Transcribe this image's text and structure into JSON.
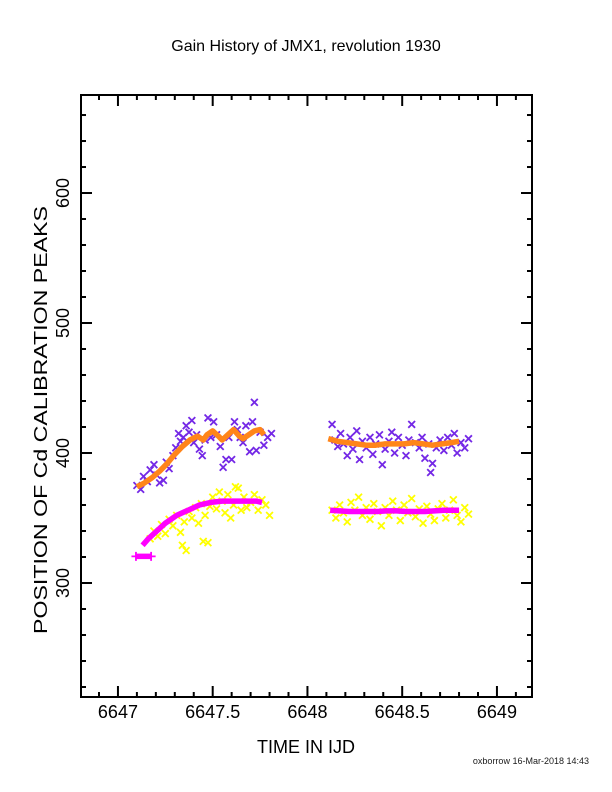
{
  "page": {
    "background": "#FFFFFF",
    "footer": "oxborrow 16-Mar-2018 14:43"
  },
  "chart_data": {
    "type": "scatter",
    "title": "Gain History of JMX1, revolution 1930",
    "xlabel": "TIME IN IJD",
    "ylabel": "POSITION OF Cd CALIBRATION PEAKS",
    "xlim": [
      6646.805,
      6649.185
    ],
    "ylim": [
      212.3,
      675.4
    ],
    "grid": false,
    "legend": null,
    "axis_color": "#000000",
    "x_minor_step": 0.1,
    "y_minor_step": 20,
    "x_major_ticks": [
      6647,
      6647.5,
      6648,
      6648.5,
      6649
    ],
    "x_tick_labels": [
      "6647",
      "6647.5",
      "6648",
      "6648.5",
      "6649"
    ],
    "y_major_ticks": [
      300,
      400,
      500,
      600
    ],
    "y_tick_labels": [
      "300",
      "400",
      "500",
      "600"
    ],
    "series": [
      {
        "name": "upper-peak-measurements",
        "type": "scatter",
        "marker": "x",
        "color": "#7428E6",
        "points": [
          [
            6647.1,
            375
          ],
          [
            6647.12,
            372
          ],
          [
            6647.135,
            382
          ],
          [
            6647.155,
            378
          ],
          [
            6647.17,
            387
          ],
          [
            6647.19,
            391
          ],
          [
            6647.205,
            383
          ],
          [
            6647.22,
            377
          ],
          [
            6647.24,
            379
          ],
          [
            6647.255,
            393
          ],
          [
            6647.27,
            388
          ],
          [
            6647.29,
            398
          ],
          [
            6647.305,
            404
          ],
          [
            6647.32,
            415
          ],
          [
            6647.33,
            409
          ],
          [
            6647.345,
            412
          ],
          [
            6647.36,
            421
          ],
          [
            6647.375,
            416
          ],
          [
            6647.39,
            425
          ],
          [
            6647.4,
            408
          ],
          [
            6647.415,
            414
          ],
          [
            6647.43,
            403
          ],
          [
            6647.445,
            398
          ],
          [
            6647.46,
            410
          ],
          [
            6647.475,
            427
          ],
          [
            6647.49,
            412
          ],
          [
            6647.505,
            424
          ],
          [
            6647.52,
            414
          ],
          [
            6647.54,
            405
          ],
          [
            6647.555,
            389
          ],
          [
            6647.57,
            395
          ],
          [
            6647.585,
            412
          ],
          [
            6647.6,
            395
          ],
          [
            6647.615,
            424
          ],
          [
            6647.63,
            418
          ],
          [
            6647.645,
            412
          ],
          [
            6647.66,
            408
          ],
          [
            6647.675,
            421
          ],
          [
            6647.695,
            401
          ],
          [
            6647.71,
            424
          ],
          [
            6647.72,
            439
          ],
          [
            6647.73,
            402
          ],
          [
            6647.75,
            416
          ],
          [
            6647.77,
            406
          ],
          [
            6647.79,
            412
          ],
          [
            6647.81,
            415
          ],
          [
            6648.13,
            422
          ],
          [
            6648.145,
            410
          ],
          [
            6648.16,
            405
          ],
          [
            6648.175,
            415
          ],
          [
            6648.19,
            407
          ],
          [
            6648.21,
            398
          ],
          [
            6648.225,
            412
          ],
          [
            6648.24,
            403
          ],
          [
            6648.26,
            417
          ],
          [
            6648.275,
            395
          ],
          [
            6648.29,
            409
          ],
          [
            6648.31,
            404
          ],
          [
            6648.33,
            412
          ],
          [
            6648.345,
            399
          ],
          [
            6648.36,
            407
          ],
          [
            6648.38,
            414
          ],
          [
            6648.395,
            391
          ],
          [
            6648.41,
            403
          ],
          [
            6648.43,
            409
          ],
          [
            6648.445,
            416
          ],
          [
            6648.46,
            400
          ],
          [
            6648.48,
            412
          ],
          [
            6648.5,
            406
          ],
          [
            6648.52,
            398
          ],
          [
            6648.535,
            410
          ],
          [
            6648.55,
            422
          ],
          [
            6648.57,
            408
          ],
          [
            6648.59,
            404
          ],
          [
            6648.605,
            412
          ],
          [
            6648.62,
            396
          ],
          [
            6648.64,
            407
          ],
          [
            6648.65,
            385
          ],
          [
            6648.66,
            392
          ],
          [
            6648.68,
            404
          ],
          [
            6648.7,
            410
          ],
          [
            6648.72,
            402
          ],
          [
            6648.74,
            412
          ],
          [
            6648.76,
            406
          ],
          [
            6648.775,
            415
          ],
          [
            6648.79,
            400
          ],
          [
            6648.81,
            408
          ],
          [
            6648.83,
            404
          ],
          [
            6648.85,
            411
          ]
        ]
      },
      {
        "name": "upper-peak-smoothed",
        "type": "line",
        "color": "#FF8519",
        "stroke_width": 5.5,
        "segments": [
          [
            [
              6647.1,
              374
            ],
            [
              6647.14,
              377
            ],
            [
              6647.18,
              381
            ],
            [
              6647.22,
              386
            ],
            [
              6647.26,
              392
            ],
            [
              6647.3,
              399
            ],
            [
              6647.34,
              405
            ],
            [
              6647.38,
              410
            ],
            [
              6647.42,
              413
            ],
            [
              6647.45,
              410
            ],
            [
              6647.47,
              414
            ],
            [
              6647.5,
              417
            ],
            [
              6647.53,
              413
            ],
            [
              6647.55,
              410
            ],
            [
              6647.58,
              414
            ],
            [
              6647.61,
              418
            ],
            [
              6647.64,
              413
            ],
            [
              6647.66,
              411
            ],
            [
              6647.69,
              414
            ],
            [
              6647.72,
              417
            ],
            [
              6647.75,
              418
            ],
            [
              6647.77,
              414
            ]
          ],
          [
            [
              6648.11,
              411
            ],
            [
              6648.16,
              409
            ],
            [
              6648.21,
              408
            ],
            [
              6648.26,
              407
            ],
            [
              6648.31,
              406
            ],
            [
              6648.36,
              406
            ],
            [
              6648.41,
              407
            ],
            [
              6648.46,
              407
            ],
            [
              6648.51,
              407
            ],
            [
              6648.56,
              408
            ],
            [
              6648.61,
              407
            ],
            [
              6648.66,
              406
            ],
            [
              6648.71,
              407
            ],
            [
              6648.76,
              408
            ],
            [
              6648.8,
              409
            ]
          ]
        ]
      },
      {
        "name": "lower-peak-measurements",
        "type": "scatter",
        "marker": "x",
        "color": "#FFFF00",
        "points": [
          [
            6647.17,
            334
          ],
          [
            6647.19,
            340
          ],
          [
            6647.21,
            336
          ],
          [
            6647.23,
            345
          ],
          [
            6647.25,
            338
          ],
          [
            6647.27,
            349
          ],
          [
            6647.29,
            344
          ],
          [
            6647.31,
            352
          ],
          [
            6647.33,
            339
          ],
          [
            6647.34,
            329
          ],
          [
            6647.35,
            347
          ],
          [
            6647.36,
            325
          ],
          [
            6647.375,
            355
          ],
          [
            6647.39,
            350
          ],
          [
            6647.41,
            358
          ],
          [
            6647.425,
            346
          ],
          [
            6647.44,
            361
          ],
          [
            6647.45,
            332
          ],
          [
            6647.46,
            352
          ],
          [
            6647.475,
            331
          ],
          [
            6647.485,
            359
          ],
          [
            6647.5,
            366
          ],
          [
            6647.52,
            357
          ],
          [
            6647.535,
            370
          ],
          [
            6647.55,
            363
          ],
          [
            6647.565,
            354
          ],
          [
            6647.58,
            368
          ],
          [
            6647.595,
            350
          ],
          [
            6647.61,
            360
          ],
          [
            6647.62,
            374
          ],
          [
            6647.635,
            373
          ],
          [
            6647.65,
            356
          ],
          [
            6647.665,
            366
          ],
          [
            6647.68,
            358
          ],
          [
            6647.7,
            362
          ],
          [
            6647.72,
            368
          ],
          [
            6647.74,
            356
          ],
          [
            6647.76,
            364
          ],
          [
            6647.78,
            360
          ],
          [
            6647.8,
            352
          ],
          [
            6648.13,
            356
          ],
          [
            6648.15,
            350
          ],
          [
            6648.17,
            360
          ],
          [
            6648.19,
            354
          ],
          [
            6648.21,
            347
          ],
          [
            6648.23,
            362
          ],
          [
            6648.25,
            356
          ],
          [
            6648.27,
            366
          ],
          [
            6648.29,
            352
          ],
          [
            6648.31,
            358
          ],
          [
            6648.33,
            349
          ],
          [
            6648.35,
            361
          ],
          [
            6648.37,
            355
          ],
          [
            6648.39,
            344
          ],
          [
            6648.41,
            358
          ],
          [
            6648.43,
            352
          ],
          [
            6648.45,
            363
          ],
          [
            6648.47,
            356
          ],
          [
            6648.49,
            348
          ],
          [
            6648.51,
            360
          ],
          [
            6648.53,
            354
          ],
          [
            6648.55,
            365
          ],
          [
            6648.57,
            351
          ],
          [
            6648.59,
            357
          ],
          [
            6648.61,
            346
          ],
          [
            6648.63,
            359
          ],
          [
            6648.65,
            353
          ],
          [
            6648.67,
            348
          ],
          [
            6648.69,
            357
          ],
          [
            6648.71,
            361
          ],
          [
            6648.73,
            350
          ],
          [
            6648.75,
            356
          ],
          [
            6648.77,
            364
          ],
          [
            6648.79,
            352
          ],
          [
            6648.81,
            347
          ],
          [
            6648.83,
            358
          ],
          [
            6648.85,
            353
          ]
        ]
      },
      {
        "name": "lower-peak-smoothed",
        "type": "line",
        "color": "#FF00FF",
        "stroke_width": 5.5,
        "segments": [
          [
            [
              6647.095,
              320.5
            ],
            [
              6647.175,
              320.5
            ]
          ],
          [
            [
              6647.13,
              329
            ],
            [
              6647.16,
              334
            ],
            [
              6647.19,
              338
            ],
            [
              6647.22,
              342
            ],
            [
              6647.25,
              346
            ],
            [
              6647.28,
              349
            ],
            [
              6647.31,
              352
            ],
            [
              6647.34,
              354
            ],
            [
              6647.37,
              356
            ],
            [
              6647.4,
              358
            ],
            [
              6647.43,
              360
            ],
            [
              6647.46,
              361
            ],
            [
              6647.49,
              362
            ],
            [
              6647.52,
              362.5
            ],
            [
              6647.55,
              363
            ],
            [
              6647.58,
              363
            ],
            [
              6647.61,
              363
            ],
            [
              6647.64,
              363
            ],
            [
              6647.67,
              363
            ],
            [
              6647.7,
              363
            ],
            [
              6647.73,
              363
            ],
            [
              6647.76,
              362
            ]
          ],
          [
            [
              6648.12,
              356
            ],
            [
              6648.17,
              355.5
            ],
            [
              6648.22,
              355
            ],
            [
              6648.27,
              355
            ],
            [
              6648.32,
              355
            ],
            [
              6648.37,
              355
            ],
            [
              6648.42,
              355.5
            ],
            [
              6648.47,
              355.5
            ],
            [
              6648.52,
              355
            ],
            [
              6648.57,
              355
            ],
            [
              6648.62,
              355
            ],
            [
              6648.67,
              355.5
            ],
            [
              6648.72,
              356
            ],
            [
              6648.77,
              356
            ],
            [
              6648.8,
              356
            ]
          ]
        ],
        "plus_markers": [
          [
            6647.095,
            320.5
          ],
          [
            6647.175,
            320.5
          ]
        ]
      }
    ]
  }
}
